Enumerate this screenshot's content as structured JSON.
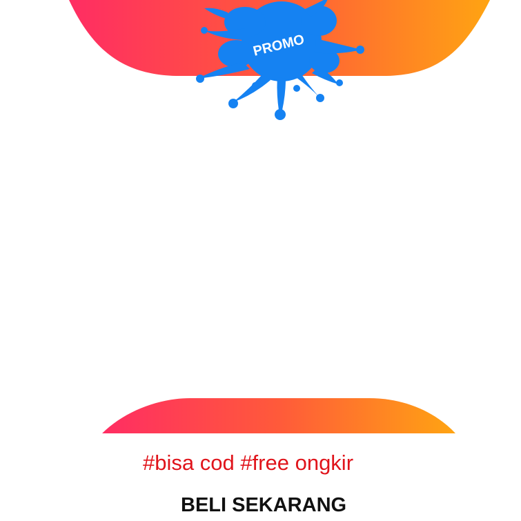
{
  "promo": {
    "badge_label": "PROMO",
    "badge_color": "#1582f2",
    "badge_text_color": "#ffffff"
  },
  "banner": {
    "gradient_start": "#ff2d63",
    "gradient_mid": "#ff5a3a",
    "gradient_end": "#ffa412"
  },
  "tagline": {
    "text": "#bisa cod #free ongkir",
    "color": "#e0141b"
  },
  "cta": {
    "label": "BELI SEKARANG",
    "color": "#111111"
  },
  "icons": {
    "badge_icon": "splash-badge-icon"
  }
}
